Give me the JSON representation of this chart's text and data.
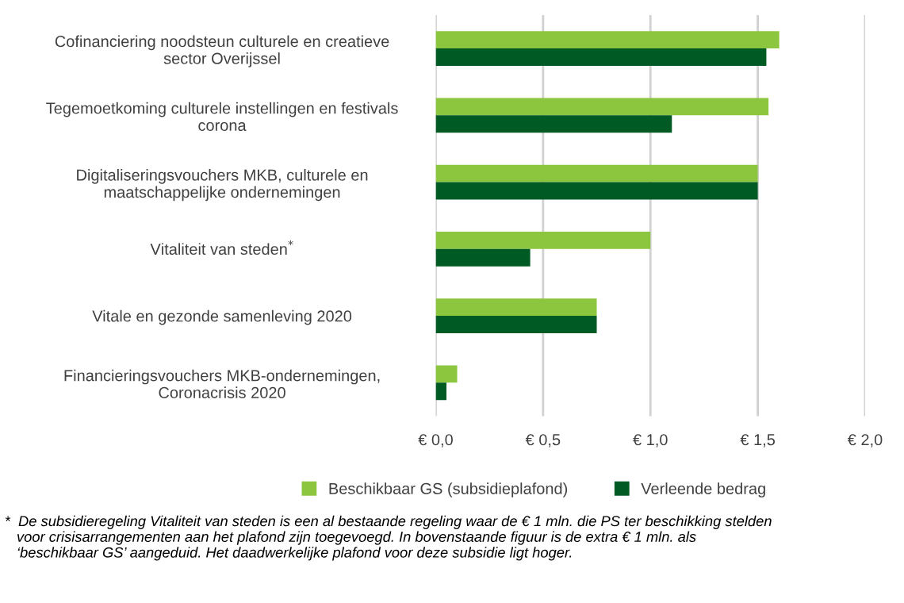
{
  "chart_data": {
    "type": "bar",
    "orientation": "horizontal",
    "categories": [
      "Cofinanciering noodsteun culturele en creatieve\nsector Overijssel",
      "Tegemoetkoming culturele instellingen en festivals\ncorona",
      "Digitaliseringsvouchers MKB, culturele en\nmaatschappelijke ondernemingen",
      "Vitaliteit van steden$^{*}$",
      "Vitale en gezonde samenleving 2020",
      "Financieringsvouchers MKB-ondernemingen,\nCoronacrisis 2020"
    ],
    "series": [
      {
        "name": "Beschikbaar GS (subsidieplafond)",
        "color": "#8cc63f",
        "values": [
          1.6,
          1.55,
          1.5,
          1.0,
          0.75,
          0.1
        ]
      },
      {
        "name": "Verleende bedrag",
        "color": "#005a23",
        "values": [
          1.54,
          1.1,
          1.5,
          0.44,
          0.75,
          0.05
        ]
      }
    ],
    "xlim": [
      0,
      2.0
    ],
    "xticks": [
      {
        "value": 0,
        "label": "€ 0,0"
      },
      {
        "value": 0.5,
        "label": "€ 0,5"
      },
      {
        "value": 1.0,
        "label": "€ 1,0"
      },
      {
        "value": 1.5,
        "label": "€ 1,5"
      },
      {
        "value": 2.0,
        "label": "€ 2,0"
      }
    ],
    "grid": "x",
    "legend": "bottom",
    "annotations": [
      "*  De subsidieregeling Vitaliteit van steden is een al bestaande regeling waar de € 1 mln. die PS ter beschikking stelden\n   voor crisisarrangementen aan het plafond zijn toegevoegd. In bovenstaande figuur is de extra € 1 mln. als\n   ‘beschikbaar GS’ aangeduid. Het daadwerkelijke plafond voor deze subsidie ligt hoger."
    ]
  }
}
